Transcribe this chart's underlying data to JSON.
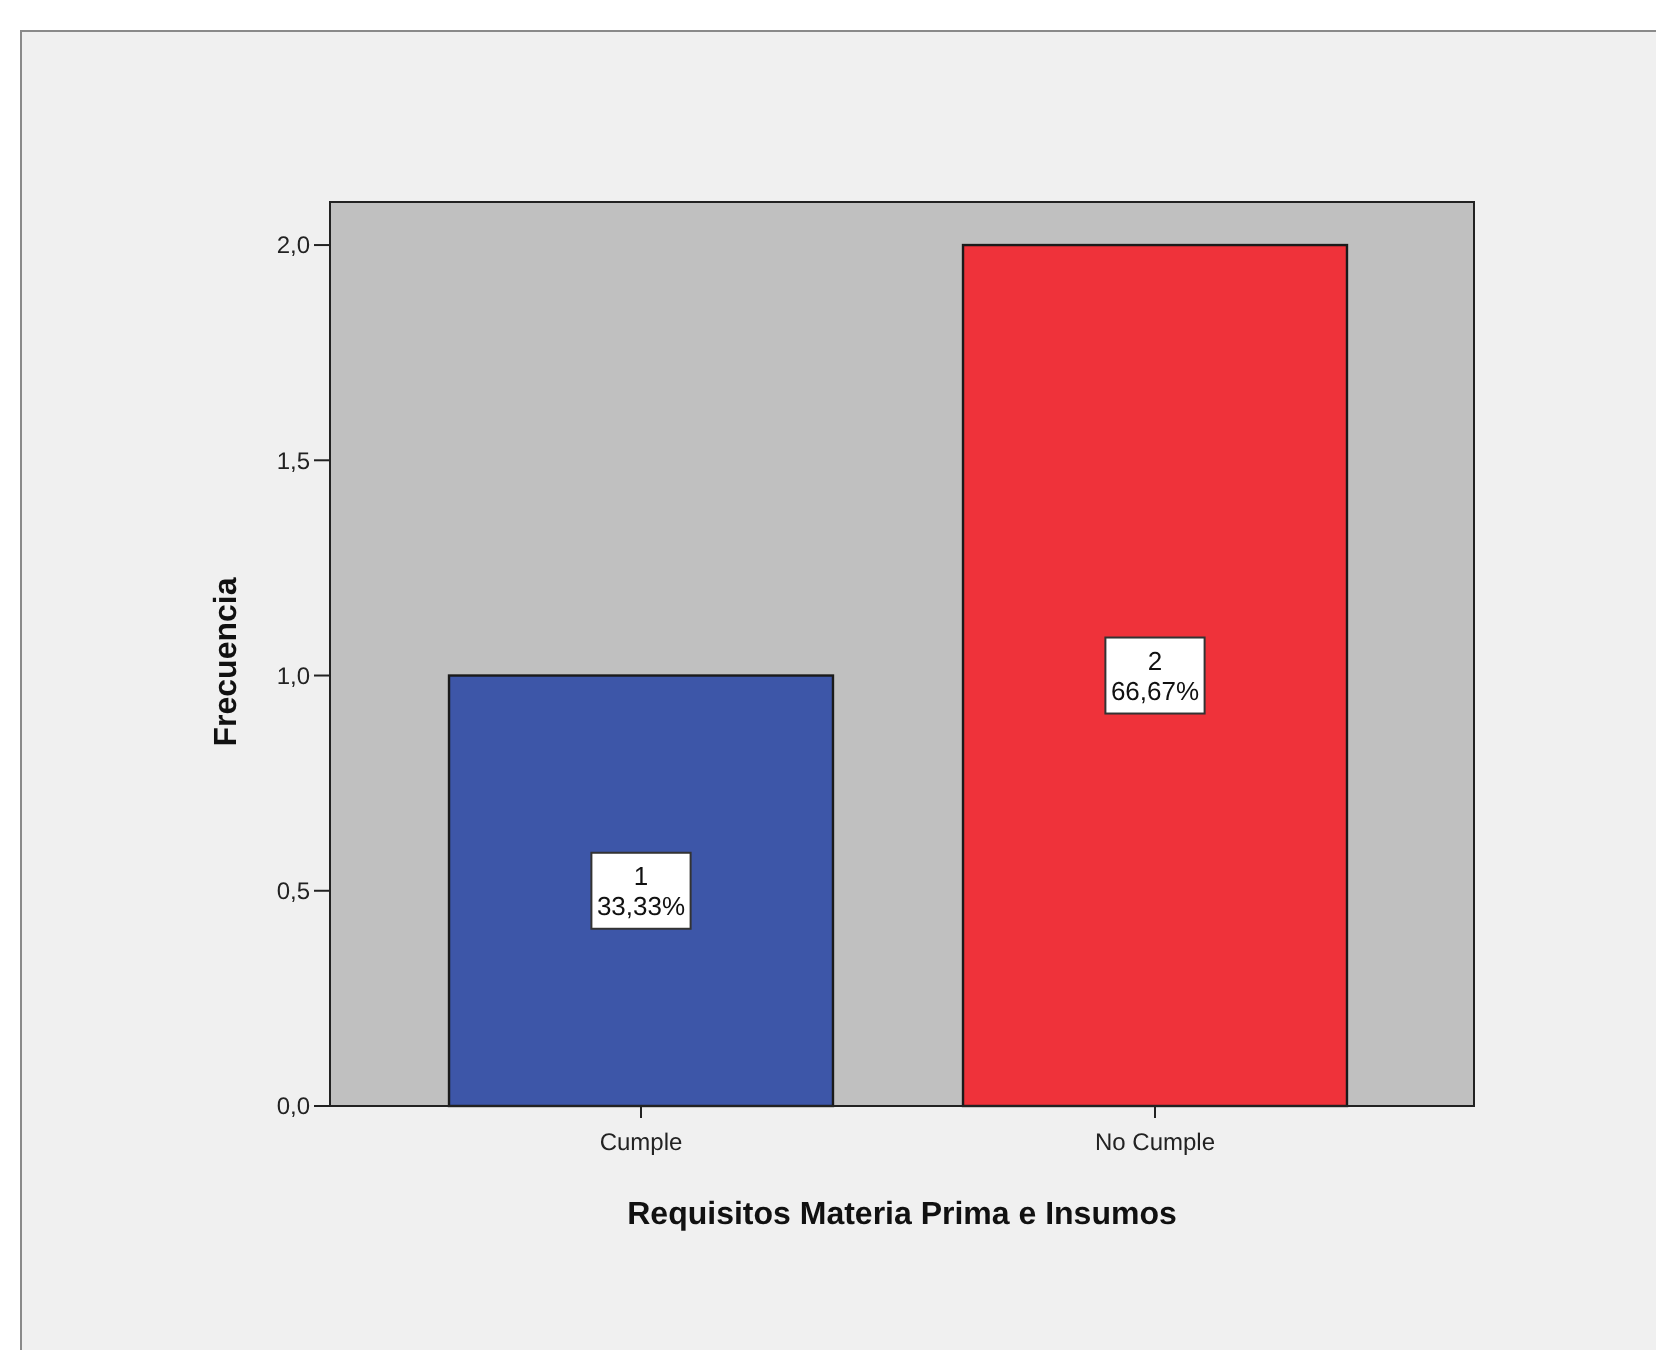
{
  "chart_data": {
    "type": "bar",
    "xlabel": "Requisitos Materia Prima e Insumos",
    "ylabel": "Frecuencia",
    "categories": [
      "Cumple",
      "No Cumple"
    ],
    "values": [
      1,
      2
    ],
    "colors": [
      "#3d56a8",
      "#ef323a"
    ],
    "value_labels": [
      "1\n33,33%",
      "2\n66,67%"
    ],
    "ylim": [
      0,
      2.1
    ],
    "yticks": [
      {
        "value": 0,
        "label": "0,0"
      },
      {
        "value": 0.5,
        "label": "0,5"
      },
      {
        "value": 1,
        "label": "1,0"
      },
      {
        "value": 1.5,
        "label": "1,5"
      },
      {
        "value": 2,
        "label": "2,0"
      }
    ]
  }
}
